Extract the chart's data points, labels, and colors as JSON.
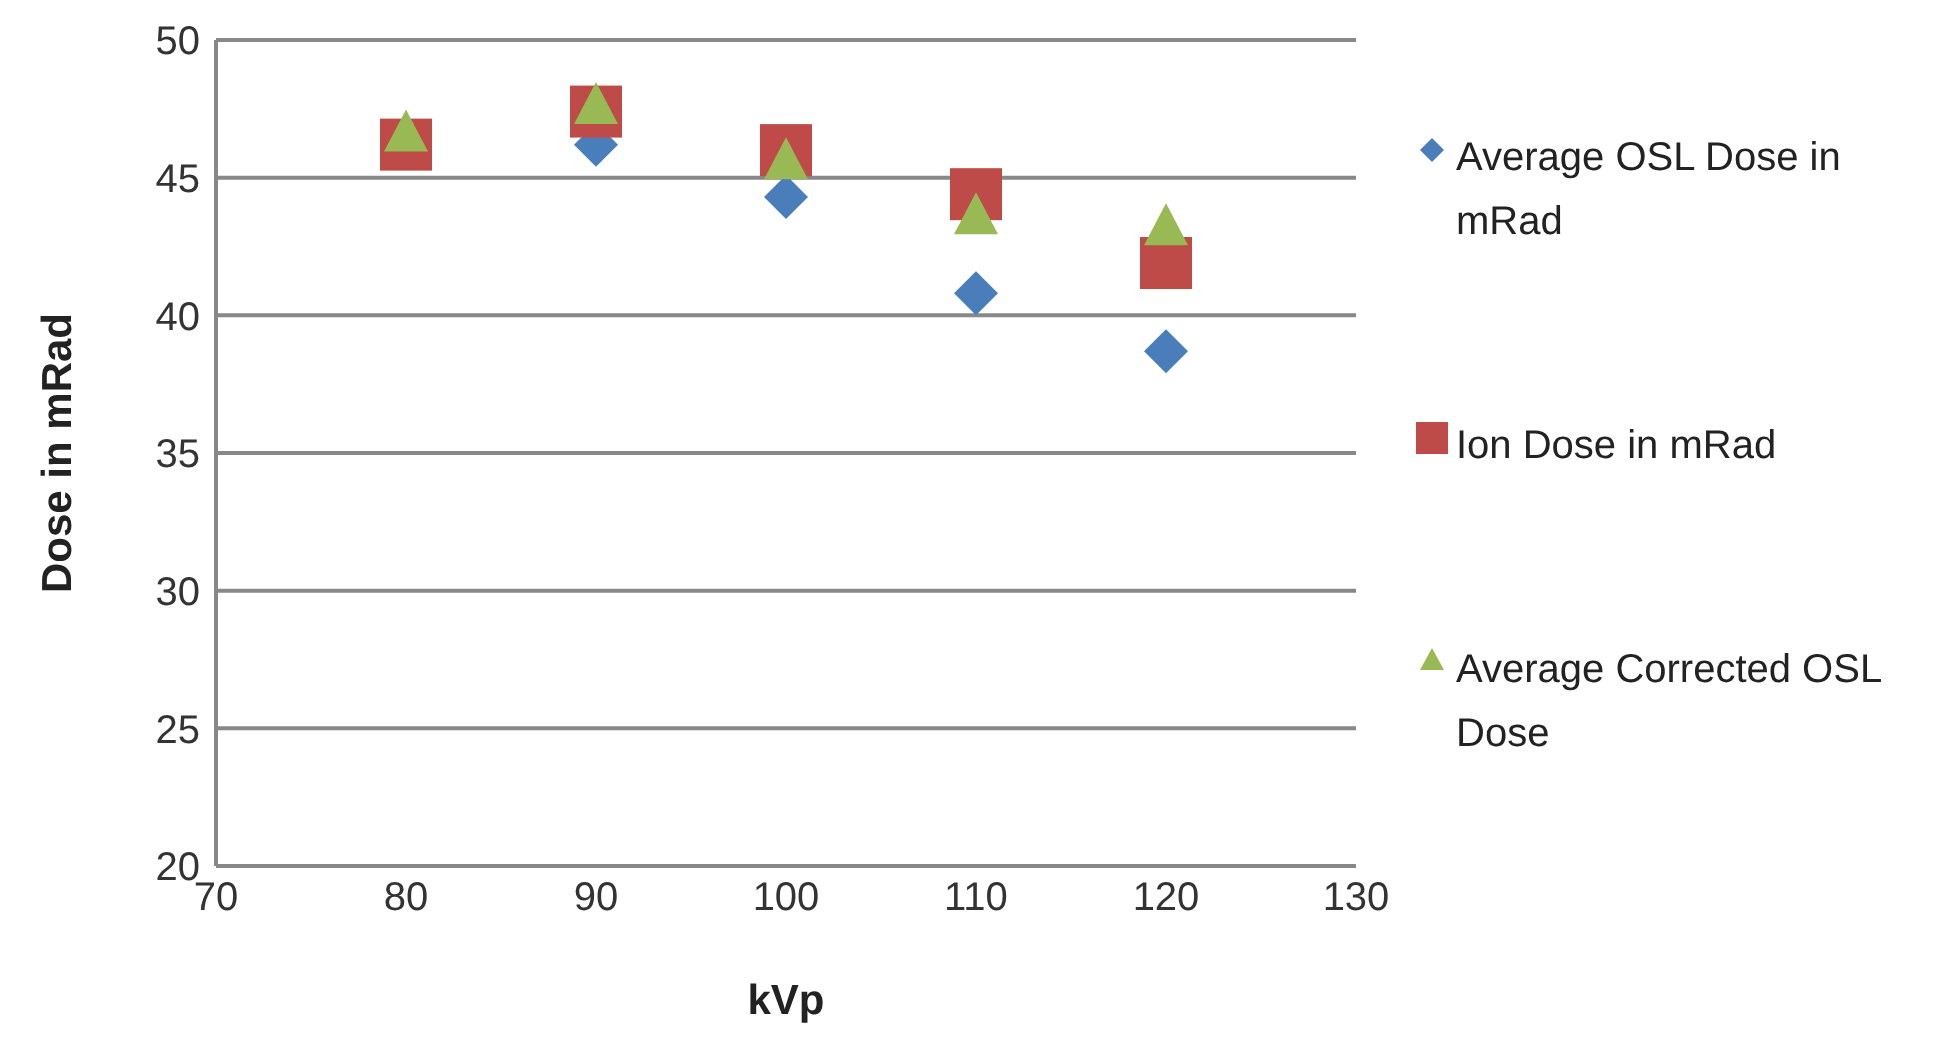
{
  "chart_data": {
    "type": "scatter",
    "xlabel": "kVp",
    "ylabel": "Dose in mRad",
    "x": [
      80,
      90,
      100,
      110,
      120
    ],
    "xlim": [
      70,
      130
    ],
    "xticks": [
      70,
      80,
      90,
      100,
      110,
      120,
      130
    ],
    "ylim": [
      20,
      50
    ],
    "yticks": [
      20,
      25,
      30,
      35,
      40,
      45,
      50
    ],
    "grid": "y",
    "legend": "right",
    "series": [
      {
        "name": "Average OSL Dose in mRad",
        "color": "#4a7ebb",
        "marker": "diamond",
        "values": [
          null,
          46.2,
          44.3,
          40.8,
          38.7
        ]
      },
      {
        "name": "Ion Dose in mRad",
        "color": "#be4b48",
        "marker": "square",
        "values": [
          46.2,
          47.4,
          46.0,
          44.4,
          41.9
        ]
      },
      {
        "name": "Average Corrected OSL Dose",
        "color": "#98b954",
        "marker": "triangle",
        "values": [
          46.6,
          47.6,
          45.6,
          43.6,
          43.2
        ]
      }
    ]
  }
}
